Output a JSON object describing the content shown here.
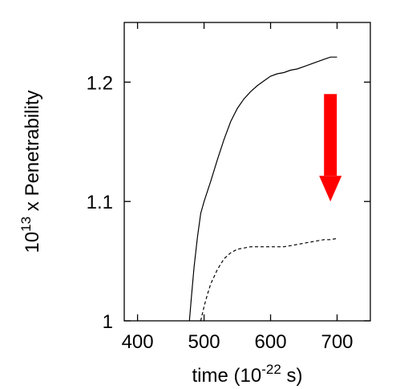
{
  "chart_data": {
    "type": "line",
    "xlabel": {
      "pre": "time (10",
      "sup": "-22",
      "post": " s)"
    },
    "ylabel": {
      "pre": "10",
      "sup": "13",
      "post": " x Penetrability"
    },
    "xlim": [
      380,
      750
    ],
    "ylim": [
      1.0,
      1.25
    ],
    "xticks": [
      400,
      500,
      600,
      700
    ],
    "yticks": [
      1,
      1.1,
      1.2
    ],
    "ytick_labels": [
      "1",
      "1.1",
      "1.2"
    ],
    "grid": false,
    "arrow": {
      "color": "#ff0000",
      "direction": "down",
      "x": 690,
      "y_start": 1.19,
      "y_end": 1.1
    },
    "series": [
      {
        "style": "solid",
        "color": "#000000",
        "x": [
          478,
          481,
          485,
          490,
          495,
          500,
          510,
          520,
          530,
          540,
          550,
          560,
          570,
          580,
          590,
          600,
          610,
          620,
          630,
          640,
          650,
          660,
          670,
          680,
          690,
          700
        ],
        "y": [
          1.0,
          1.02,
          1.045,
          1.07,
          1.09,
          1.1,
          1.117,
          1.135,
          1.152,
          1.167,
          1.178,
          1.186,
          1.192,
          1.197,
          1.201,
          1.205,
          1.207,
          1.208,
          1.21,
          1.211,
          1.213,
          1.215,
          1.217,
          1.219,
          1.221,
          1.221
        ]
      },
      {
        "style": "dashed",
        "color": "#000000",
        "x": [
          495,
          500,
          505,
          510,
          520,
          530,
          540,
          550,
          560,
          570,
          580,
          590,
          600,
          610,
          620,
          630,
          640,
          650,
          660,
          670,
          680,
          690,
          700
        ],
        "y": [
          1.0,
          1.012,
          1.022,
          1.031,
          1.043,
          1.052,
          1.057,
          1.06,
          1.061,
          1.062,
          1.062,
          1.062,
          1.062,
          1.062,
          1.062,
          1.063,
          1.064,
          1.065,
          1.066,
          1.067,
          1.068,
          1.068,
          1.069
        ]
      }
    ]
  }
}
